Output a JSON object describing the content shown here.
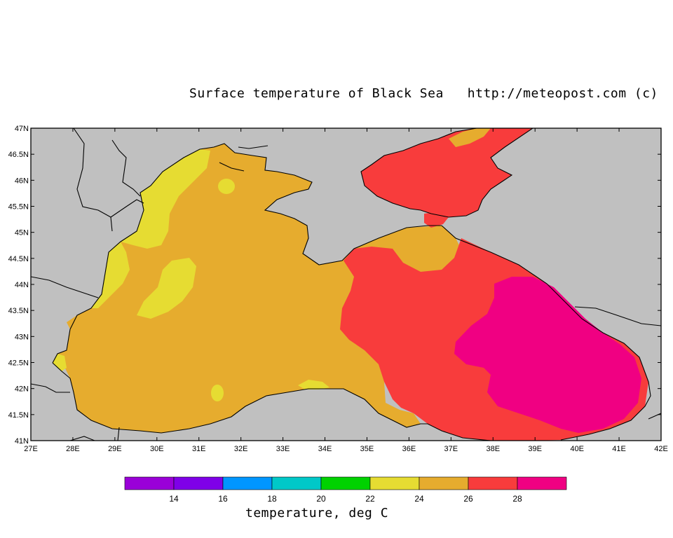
{
  "title": "Surface temperature of Black Sea   http://meteopost.com (c)",
  "colorbar_title": "temperature, deg C",
  "colors": {
    "land": "#c0c0c0",
    "c12": "#9a00d8",
    "c14": "#7f00e8",
    "c16": "#0096ff",
    "c18": "#00c8c8",
    "c20": "#00d200",
    "c22": "#e6dc32",
    "c24": "#e6ac2e",
    "c26": "#f83c3c",
    "c28": "#f00082"
  },
  "chart_data": {
    "type": "map",
    "x_ticks": [
      "27E",
      "28E",
      "29E",
      "30E",
      "31E",
      "32E",
      "33E",
      "34E",
      "35E",
      "36E",
      "37E",
      "38E",
      "39E",
      "40E",
      "41E",
      "42E"
    ],
    "y_ticks": [
      "47N",
      "46.5N",
      "46N",
      "45.5N",
      "45N",
      "44.5N",
      "44N",
      "43.5N",
      "43N",
      "42.5N",
      "42N",
      "41.5N",
      "41N"
    ],
    "lon_range": [
      27,
      42
    ],
    "lat_range": [
      41,
      47
    ],
    "colorbar_labels": [
      "14",
      "16",
      "18",
      "20",
      "22",
      "24",
      "26",
      "28"
    ],
    "colorbar_bins": [
      12,
      14,
      16,
      18,
      20,
      22,
      24,
      26,
      28,
      30
    ]
  }
}
